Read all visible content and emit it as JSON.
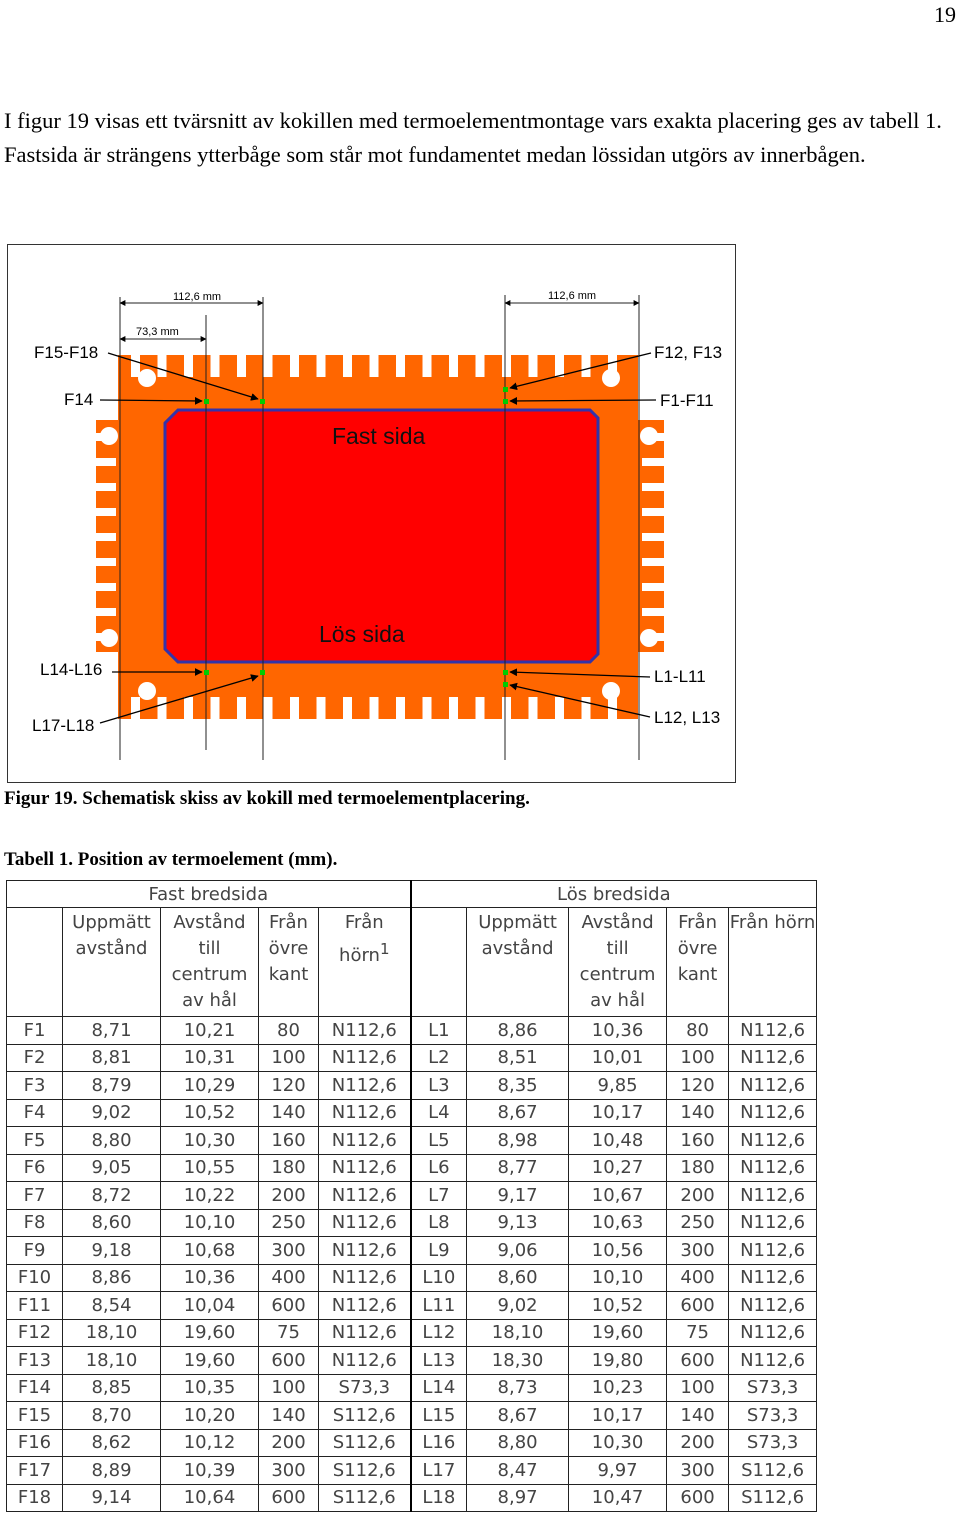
{
  "page_number": "19",
  "intro_text": "I figur 19 visas ett tvärsnitt av kokillen med termoelementmontage vars exakta placering ges av tabell 1. Fastsida är strängens ytterbåge som står mot fundamentet medan lössidan utgörs av innerbågen.",
  "figure": {
    "dim_left_outer": "112,6 mm",
    "dim_left_inner": "73,3 mm",
    "dim_right": "112,6 mm",
    "label_f15_f18": "F15-F18",
    "label_f14": "F14",
    "label_f12_f13": "F12, F13",
    "label_f1_f11": "F1-F11",
    "label_l14_l16": "L14-L16",
    "label_l17_l18": "L17-L18",
    "label_l1_l11": "L1-L11",
    "label_l12_l13": "L12, L13",
    "fast_sida": "Fast sida",
    "los_sida": "Lös sida",
    "colors": {
      "mold": "#ff6600",
      "inner": "#ff0000",
      "border": "#3333aa",
      "sensor": "#00cc00"
    }
  },
  "figure_caption": "Figur 19. Schematisk skiss av kokill med termoelementplacering.",
  "table_caption": "Tabell 1. Position av termoelement (mm).",
  "table": {
    "group_fast": "Fast bredsida",
    "group_los": "Lös bredsida",
    "headers": {
      "uppmatt": "Uppmätt avstånd",
      "avstand": "Avstånd till centrum av hål",
      "fran_ovre": "Från övre kant",
      "fran_horn": "Från hörn",
      "fran_horn_sup": "1"
    },
    "rows": [
      [
        "F1",
        "8,71",
        "10,21",
        "80",
        "N112,6",
        "L1",
        "8,86",
        "10,36",
        "80",
        "N112,6"
      ],
      [
        "F2",
        "8,81",
        "10,31",
        "100",
        "N112,6",
        "L2",
        "8,51",
        "10,01",
        "100",
        "N112,6"
      ],
      [
        "F3",
        "8,79",
        "10,29",
        "120",
        "N112,6",
        "L3",
        "8,35",
        "9,85",
        "120",
        "N112,6"
      ],
      [
        "F4",
        "9,02",
        "10,52",
        "140",
        "N112,6",
        "L4",
        "8,67",
        "10,17",
        "140",
        "N112,6"
      ],
      [
        "F5",
        "8,80",
        "10,30",
        "160",
        "N112,6",
        "L5",
        "8,98",
        "10,48",
        "160",
        "N112,6"
      ],
      [
        "F6",
        "9,05",
        "10,55",
        "180",
        "N112,6",
        "L6",
        "8,77",
        "10,27",
        "180",
        "N112,6"
      ],
      [
        "F7",
        "8,72",
        "10,22",
        "200",
        "N112,6",
        "L7",
        "9,17",
        "10,67",
        "200",
        "N112,6"
      ],
      [
        "F8",
        "8,60",
        "10,10",
        "250",
        "N112,6",
        "L8",
        "9,13",
        "10,63",
        "250",
        "N112,6"
      ],
      [
        "F9",
        "9,18",
        "10,68",
        "300",
        "N112,6",
        "L9",
        "9,06",
        "10,56",
        "300",
        "N112,6"
      ],
      [
        "F10",
        "8,86",
        "10,36",
        "400",
        "N112,6",
        "L10",
        "8,60",
        "10,10",
        "400",
        "N112,6"
      ],
      [
        "F11",
        "8,54",
        "10,04",
        "600",
        "N112,6",
        "L11",
        "9,02",
        "10,52",
        "600",
        "N112,6"
      ],
      [
        "F12",
        "18,10",
        "19,60",
        "75",
        "N112,6",
        "L12",
        "18,10",
        "19,60",
        "75",
        "N112,6"
      ],
      [
        "F13",
        "18,10",
        "19,60",
        "600",
        "N112,6",
        "L13",
        "18,30",
        "19,80",
        "600",
        "N112,6"
      ],
      [
        "F14",
        "8,85",
        "10,35",
        "100",
        "S73,3",
        "L14",
        "8,73",
        "10,23",
        "100",
        "S73,3"
      ],
      [
        "F15",
        "8,70",
        "10,20",
        "140",
        "S112,6",
        "L15",
        "8,67",
        "10,17",
        "140",
        "S73,3"
      ],
      [
        "F16",
        "8,62",
        "10,12",
        "200",
        "S112,6",
        "L16",
        "8,80",
        "10,30",
        "200",
        "S73,3"
      ],
      [
        "F17",
        "8,89",
        "10,39",
        "300",
        "S112,6",
        "L17",
        "8,47",
        "9,97",
        "300",
        "S112,6"
      ],
      [
        "F18",
        "9,14",
        "10,64",
        "600",
        "S112,6",
        "L18",
        "8,97",
        "10,47",
        "600",
        "S112,6"
      ]
    ]
  }
}
